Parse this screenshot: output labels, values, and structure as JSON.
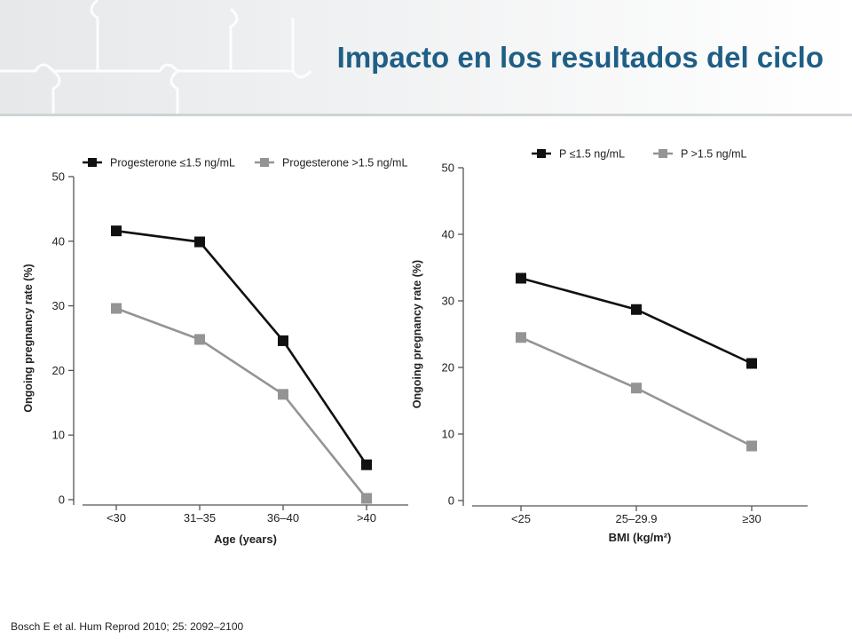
{
  "slide": {
    "title": "Impacto en los resultados del ciclo",
    "citation": "Bosch E et al. Hum Reprod 2010; 25: 2092–2100",
    "banner_decoration": "puzzle-pieces"
  },
  "chart_data": [
    {
      "type": "line",
      "categories": [
        "<30",
        "31–35",
        "36–40",
        ">40"
      ],
      "series": [
        {
          "name": "Progesterone ≤1.5 ng/mL",
          "values": [
            41.6,
            39.9,
            24.6,
            5.4
          ],
          "color": "#111111"
        },
        {
          "name": "Progesterone >1.5 ng/mL",
          "values": [
            29.6,
            24.8,
            16.3,
            0.2
          ],
          "color": "#949494"
        }
      ],
      "xlabel": "Age (years)",
      "ylabel": "Ongoing pregnancy rate (%)",
      "ylim": [
        0,
        50
      ],
      "yticks": [
        0,
        10,
        20,
        30,
        40,
        50
      ],
      "legend_position": "top",
      "grid": false
    },
    {
      "type": "line",
      "categories": [
        "<25",
        "25–29.9",
        "≥30"
      ],
      "series": [
        {
          "name": "P ≤1.5 ng/mL",
          "values": [
            33.4,
            28.7,
            20.6
          ],
          "color": "#111111"
        },
        {
          "name": "P >1.5 ng/mL",
          "values": [
            24.5,
            16.9,
            8.2
          ],
          "color": "#949494"
        }
      ],
      "xlabel": "BMI (kg/m²)",
      "ylabel": "Ongoing pregnancy rate (%)",
      "ylim": [
        0,
        50
      ],
      "yticks": [
        0,
        10,
        20,
        30,
        40,
        50
      ],
      "legend_position": "top",
      "grid": false
    }
  ]
}
